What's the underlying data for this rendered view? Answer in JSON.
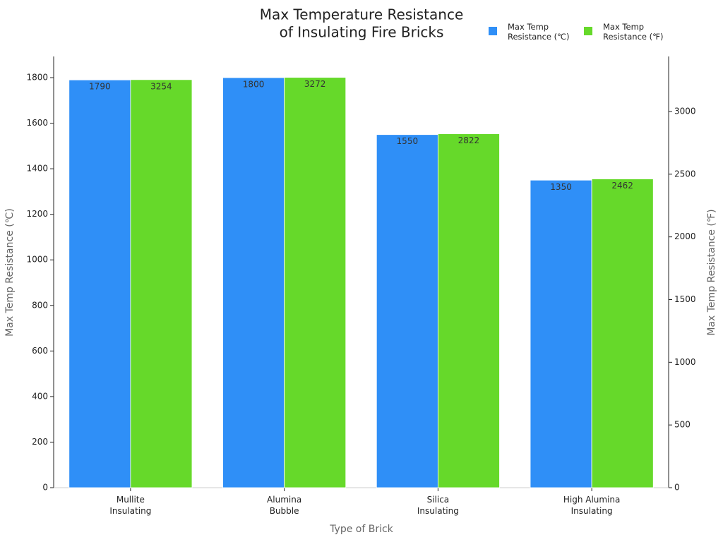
{
  "chart_data": {
    "type": "bar",
    "title": "Max Temperature Resistance\nof Insulating Fire Bricks",
    "x_label": "Type of Brick",
    "y_label": "Max Temp Resistance (℃)",
    "y2_label": "Max Temp Resistance (℉)",
    "categories": [
      "Mullite\nInsulating",
      "Alumina\nBubble",
      "Silica\nInsulating",
      "High Alumina\nInsulating"
    ],
    "series": [
      {
        "name": "Max Temp\nResistance (℃)",
        "color": "#2f8ff7",
        "values": [
          1790,
          1800,
          1550,
          1350
        ]
      },
      {
        "name": "Max Temp\nResistance (℉)",
        "color": "#66d92a",
        "values": [
          3254,
          3272,
          2822,
          2462
        ],
        "axis": "y2"
      }
    ],
    "ylim": [
      0,
      1893
    ],
    "yticks": [
      0,
      200,
      400,
      600,
      800,
      1000,
      1200,
      1400,
      1600,
      1800
    ],
    "y2lim": [
      0,
      3439
    ],
    "y2ticks": [
      0,
      500,
      1000,
      1500,
      2000,
      2500,
      3000
    ],
    "legend": "upper right",
    "grid": false
  }
}
